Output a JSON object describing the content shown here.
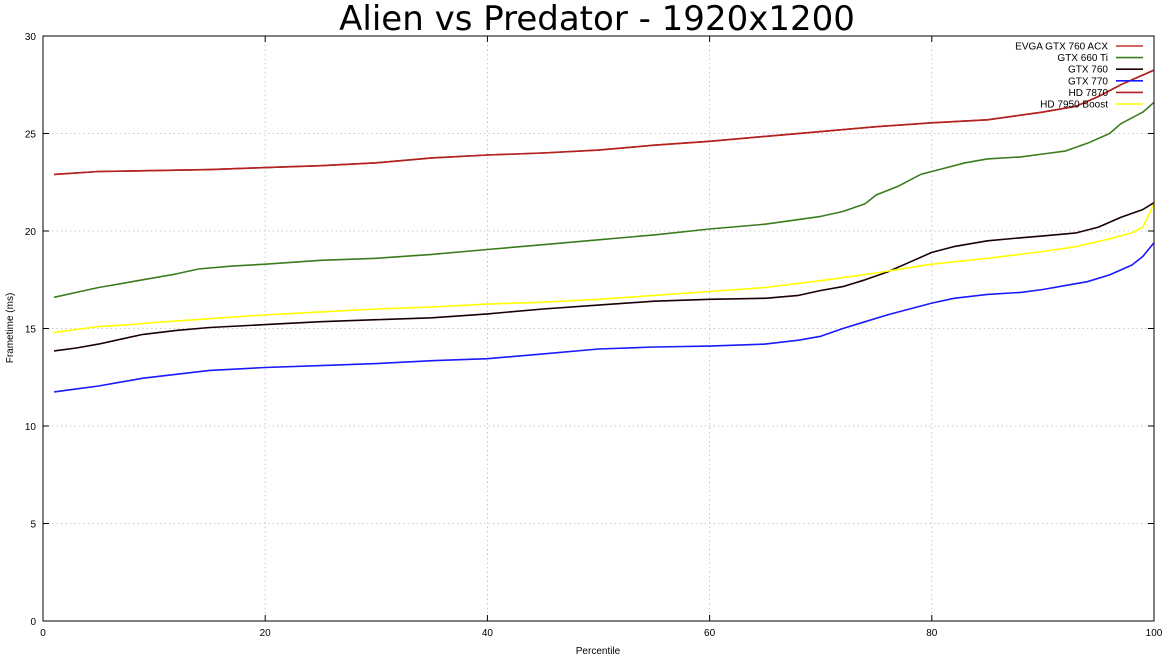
{
  "chart_data": {
    "type": "line",
    "title": "Alien vs Predator - 1920x1200",
    "xlabel": "Percentile",
    "ylabel": "Frametime (ms)",
    "xlim": [
      0,
      100
    ],
    "ylim": [
      0,
      30
    ],
    "xticks": [
      0,
      20,
      40,
      60,
      80,
      100
    ],
    "yticks": [
      0,
      5,
      10,
      15,
      20,
      25,
      30
    ],
    "grid": true,
    "legend_position": "top-right",
    "series": [
      {
        "name": "EVGA GTX 760 ACX",
        "color": "#c0392b",
        "points": [
          [
            1,
            22.9
          ],
          [
            5,
            23.05
          ],
          [
            10,
            23.1
          ],
          [
            15,
            23.15
          ],
          [
            20,
            23.25
          ],
          [
            25,
            23.35
          ],
          [
            30,
            23.5
          ],
          [
            35,
            23.75
          ],
          [
            40,
            23.9
          ],
          [
            45,
            24.0
          ],
          [
            50,
            24.15
          ],
          [
            55,
            24.4
          ],
          [
            60,
            24.6
          ],
          [
            65,
            24.85
          ],
          [
            70,
            25.1
          ],
          [
            75,
            25.35
          ],
          [
            80,
            25.55
          ],
          [
            85,
            25.7
          ],
          [
            90,
            26.1
          ],
          [
            93,
            26.4
          ],
          [
            95,
            26.9
          ],
          [
            97,
            27.5
          ],
          [
            100,
            28.25
          ]
        ]
      },
      {
        "name": "GTX 660 Ti",
        "color": "#3a7d1e",
        "points": [
          [
            1,
            16.6
          ],
          [
            3,
            16.85
          ],
          [
            5,
            17.1
          ],
          [
            8,
            17.4
          ],
          [
            10,
            17.6
          ],
          [
            12,
            17.8
          ],
          [
            14,
            18.05
          ],
          [
            17,
            18.2
          ],
          [
            20,
            18.3
          ],
          [
            25,
            18.5
          ],
          [
            30,
            18.6
          ],
          [
            35,
            18.8
          ],
          [
            40,
            19.05
          ],
          [
            45,
            19.3
          ],
          [
            50,
            19.55
          ],
          [
            55,
            19.8
          ],
          [
            60,
            20.1
          ],
          [
            65,
            20.35
          ],
          [
            70,
            20.75
          ],
          [
            72,
            21.0
          ],
          [
            74,
            21.4
          ],
          [
            75,
            21.85
          ],
          [
            77,
            22.3
          ],
          [
            79,
            22.9
          ],
          [
            81,
            23.2
          ],
          [
            83,
            23.5
          ],
          [
            85,
            23.7
          ],
          [
            88,
            23.8
          ],
          [
            90,
            23.95
          ],
          [
            92,
            24.1
          ],
          [
            94,
            24.5
          ],
          [
            96,
            25.0
          ],
          [
            97,
            25.5
          ],
          [
            99,
            26.1
          ],
          [
            100,
            26.6
          ]
        ]
      },
      {
        "name": "GTX 760",
        "color": "#1a0000",
        "points": [
          [
            1,
            13.85
          ],
          [
            3,
            14.0
          ],
          [
            5,
            14.2
          ],
          [
            7,
            14.45
          ],
          [
            9,
            14.7
          ],
          [
            12,
            14.9
          ],
          [
            15,
            15.05
          ],
          [
            20,
            15.2
          ],
          [
            25,
            15.35
          ],
          [
            30,
            15.45
          ],
          [
            35,
            15.55
          ],
          [
            40,
            15.75
          ],
          [
            45,
            16.0
          ],
          [
            50,
            16.2
          ],
          [
            55,
            16.4
          ],
          [
            60,
            16.5
          ],
          [
            65,
            16.55
          ],
          [
            68,
            16.7
          ],
          [
            70,
            16.95
          ],
          [
            72,
            17.15
          ],
          [
            74,
            17.5
          ],
          [
            76,
            17.9
          ],
          [
            78,
            18.4
          ],
          [
            80,
            18.9
          ],
          [
            82,
            19.2
          ],
          [
            85,
            19.5
          ],
          [
            88,
            19.65
          ],
          [
            90,
            19.75
          ],
          [
            93,
            19.9
          ],
          [
            95,
            20.2
          ],
          [
            97,
            20.7
          ],
          [
            99,
            21.1
          ],
          [
            100,
            21.45
          ]
        ]
      },
      {
        "name": "GTX 770",
        "color": "#1a1aff",
        "points": [
          [
            1,
            11.75
          ],
          [
            3,
            11.9
          ],
          [
            5,
            12.05
          ],
          [
            7,
            12.25
          ],
          [
            9,
            12.45
          ],
          [
            12,
            12.65
          ],
          [
            15,
            12.85
          ],
          [
            20,
            13.0
          ],
          [
            25,
            13.1
          ],
          [
            30,
            13.2
          ],
          [
            35,
            13.35
          ],
          [
            40,
            13.45
          ],
          [
            45,
            13.7
          ],
          [
            50,
            13.95
          ],
          [
            55,
            14.05
          ],
          [
            60,
            14.1
          ],
          [
            65,
            14.2
          ],
          [
            68,
            14.4
          ],
          [
            70,
            14.6
          ],
          [
            72,
            15.0
          ],
          [
            74,
            15.35
          ],
          [
            76,
            15.7
          ],
          [
            78,
            16.0
          ],
          [
            80,
            16.3
          ],
          [
            82,
            16.55
          ],
          [
            85,
            16.75
          ],
          [
            88,
            16.85
          ],
          [
            90,
            17.0
          ],
          [
            92,
            17.2
          ],
          [
            94,
            17.4
          ],
          [
            96,
            17.75
          ],
          [
            98,
            18.25
          ],
          [
            99,
            18.7
          ],
          [
            100,
            19.4
          ]
        ]
      },
      {
        "name": "HD 7870",
        "color": "#b22222",
        "points": [
          [
            1,
            22.9
          ],
          [
            5,
            23.05
          ],
          [
            10,
            23.1
          ],
          [
            15,
            23.15
          ],
          [
            20,
            23.25
          ],
          [
            25,
            23.35
          ],
          [
            30,
            23.5
          ],
          [
            35,
            23.75
          ],
          [
            40,
            23.9
          ],
          [
            45,
            24.0
          ],
          [
            50,
            24.15
          ],
          [
            55,
            24.4
          ],
          [
            60,
            24.6
          ],
          [
            65,
            24.85
          ],
          [
            70,
            25.1
          ],
          [
            75,
            25.35
          ],
          [
            80,
            25.55
          ],
          [
            85,
            25.7
          ],
          [
            90,
            26.1
          ],
          [
            93,
            26.4
          ],
          [
            95,
            26.9
          ],
          [
            97,
            27.5
          ],
          [
            100,
            28.25
          ]
        ]
      },
      {
        "name": "HD 7950 Boost",
        "color": "#ffff00",
        "points": [
          [
            1,
            14.8
          ],
          [
            3,
            14.95
          ],
          [
            5,
            15.1
          ],
          [
            8,
            15.2
          ],
          [
            10,
            15.3
          ],
          [
            15,
            15.5
          ],
          [
            20,
            15.7
          ],
          [
            25,
            15.85
          ],
          [
            30,
            16.0
          ],
          [
            35,
            16.1
          ],
          [
            40,
            16.25
          ],
          [
            45,
            16.35
          ],
          [
            50,
            16.5
          ],
          [
            55,
            16.7
          ],
          [
            60,
            16.9
          ],
          [
            65,
            17.1
          ],
          [
            70,
            17.45
          ],
          [
            75,
            17.85
          ],
          [
            80,
            18.3
          ],
          [
            85,
            18.6
          ],
          [
            90,
            18.95
          ],
          [
            93,
            19.2
          ],
          [
            96,
            19.6
          ],
          [
            98,
            19.9
          ],
          [
            99,
            20.2
          ],
          [
            100,
            21.4
          ]
        ]
      }
    ]
  }
}
